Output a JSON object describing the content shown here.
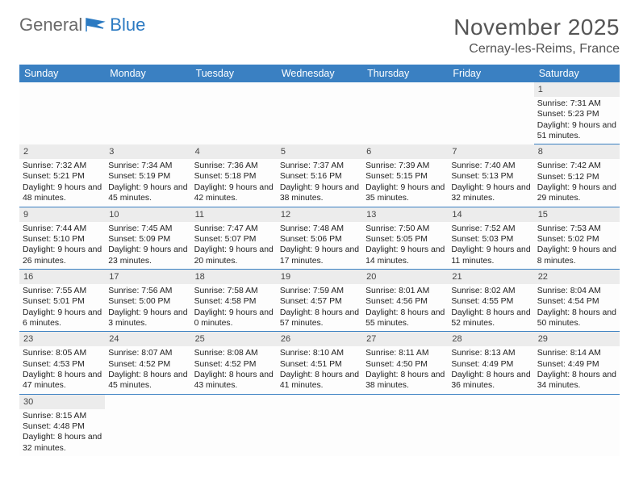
{
  "brand": {
    "part1": "General",
    "part2": "Blue"
  },
  "title": "November 2025",
  "location": "Cernay-les-Reims, France",
  "colors": {
    "header_bg": "#3a80c2",
    "header_fg": "#ffffff",
    "daynum_bg": "#ececec",
    "rule": "#3a80c2"
  },
  "day_headers": [
    "Sunday",
    "Monday",
    "Tuesday",
    "Wednesday",
    "Thursday",
    "Friday",
    "Saturday"
  ],
  "weeks": [
    [
      null,
      null,
      null,
      null,
      null,
      null,
      {
        "n": "1",
        "sunrise": "Sunrise: 7:31 AM",
        "sunset": "Sunset: 5:23 PM",
        "daylight": "Daylight: 9 hours and 51 minutes."
      }
    ],
    [
      {
        "n": "2",
        "sunrise": "Sunrise: 7:32 AM",
        "sunset": "Sunset: 5:21 PM",
        "daylight": "Daylight: 9 hours and 48 minutes."
      },
      {
        "n": "3",
        "sunrise": "Sunrise: 7:34 AM",
        "sunset": "Sunset: 5:19 PM",
        "daylight": "Daylight: 9 hours and 45 minutes."
      },
      {
        "n": "4",
        "sunrise": "Sunrise: 7:36 AM",
        "sunset": "Sunset: 5:18 PM",
        "daylight": "Daylight: 9 hours and 42 minutes."
      },
      {
        "n": "5",
        "sunrise": "Sunrise: 7:37 AM",
        "sunset": "Sunset: 5:16 PM",
        "daylight": "Daylight: 9 hours and 38 minutes."
      },
      {
        "n": "6",
        "sunrise": "Sunrise: 7:39 AM",
        "sunset": "Sunset: 5:15 PM",
        "daylight": "Daylight: 9 hours and 35 minutes."
      },
      {
        "n": "7",
        "sunrise": "Sunrise: 7:40 AM",
        "sunset": "Sunset: 5:13 PM",
        "daylight": "Daylight: 9 hours and 32 minutes."
      },
      {
        "n": "8",
        "sunrise": "Sunrise: 7:42 AM",
        "sunset": "Sunset: 5:12 PM",
        "daylight": "Daylight: 9 hours and 29 minutes."
      }
    ],
    [
      {
        "n": "9",
        "sunrise": "Sunrise: 7:44 AM",
        "sunset": "Sunset: 5:10 PM",
        "daylight": "Daylight: 9 hours and 26 minutes."
      },
      {
        "n": "10",
        "sunrise": "Sunrise: 7:45 AM",
        "sunset": "Sunset: 5:09 PM",
        "daylight": "Daylight: 9 hours and 23 minutes."
      },
      {
        "n": "11",
        "sunrise": "Sunrise: 7:47 AM",
        "sunset": "Sunset: 5:07 PM",
        "daylight": "Daylight: 9 hours and 20 minutes."
      },
      {
        "n": "12",
        "sunrise": "Sunrise: 7:48 AM",
        "sunset": "Sunset: 5:06 PM",
        "daylight": "Daylight: 9 hours and 17 minutes."
      },
      {
        "n": "13",
        "sunrise": "Sunrise: 7:50 AM",
        "sunset": "Sunset: 5:05 PM",
        "daylight": "Daylight: 9 hours and 14 minutes."
      },
      {
        "n": "14",
        "sunrise": "Sunrise: 7:52 AM",
        "sunset": "Sunset: 5:03 PM",
        "daylight": "Daylight: 9 hours and 11 minutes."
      },
      {
        "n": "15",
        "sunrise": "Sunrise: 7:53 AM",
        "sunset": "Sunset: 5:02 PM",
        "daylight": "Daylight: 9 hours and 8 minutes."
      }
    ],
    [
      {
        "n": "16",
        "sunrise": "Sunrise: 7:55 AM",
        "sunset": "Sunset: 5:01 PM",
        "daylight": "Daylight: 9 hours and 6 minutes."
      },
      {
        "n": "17",
        "sunrise": "Sunrise: 7:56 AM",
        "sunset": "Sunset: 5:00 PM",
        "daylight": "Daylight: 9 hours and 3 minutes."
      },
      {
        "n": "18",
        "sunrise": "Sunrise: 7:58 AM",
        "sunset": "Sunset: 4:58 PM",
        "daylight": "Daylight: 9 hours and 0 minutes."
      },
      {
        "n": "19",
        "sunrise": "Sunrise: 7:59 AM",
        "sunset": "Sunset: 4:57 PM",
        "daylight": "Daylight: 8 hours and 57 minutes."
      },
      {
        "n": "20",
        "sunrise": "Sunrise: 8:01 AM",
        "sunset": "Sunset: 4:56 PM",
        "daylight": "Daylight: 8 hours and 55 minutes."
      },
      {
        "n": "21",
        "sunrise": "Sunrise: 8:02 AM",
        "sunset": "Sunset: 4:55 PM",
        "daylight": "Daylight: 8 hours and 52 minutes."
      },
      {
        "n": "22",
        "sunrise": "Sunrise: 8:04 AM",
        "sunset": "Sunset: 4:54 PM",
        "daylight": "Daylight: 8 hours and 50 minutes."
      }
    ],
    [
      {
        "n": "23",
        "sunrise": "Sunrise: 8:05 AM",
        "sunset": "Sunset: 4:53 PM",
        "daylight": "Daylight: 8 hours and 47 minutes."
      },
      {
        "n": "24",
        "sunrise": "Sunrise: 8:07 AM",
        "sunset": "Sunset: 4:52 PM",
        "daylight": "Daylight: 8 hours and 45 minutes."
      },
      {
        "n": "25",
        "sunrise": "Sunrise: 8:08 AM",
        "sunset": "Sunset: 4:52 PM",
        "daylight": "Daylight: 8 hours and 43 minutes."
      },
      {
        "n": "26",
        "sunrise": "Sunrise: 8:10 AM",
        "sunset": "Sunset: 4:51 PM",
        "daylight": "Daylight: 8 hours and 41 minutes."
      },
      {
        "n": "27",
        "sunrise": "Sunrise: 8:11 AM",
        "sunset": "Sunset: 4:50 PM",
        "daylight": "Daylight: 8 hours and 38 minutes."
      },
      {
        "n": "28",
        "sunrise": "Sunrise: 8:13 AM",
        "sunset": "Sunset: 4:49 PM",
        "daylight": "Daylight: 8 hours and 36 minutes."
      },
      {
        "n": "29",
        "sunrise": "Sunrise: 8:14 AM",
        "sunset": "Sunset: 4:49 PM",
        "daylight": "Daylight: 8 hours and 34 minutes."
      }
    ],
    [
      {
        "n": "30",
        "sunrise": "Sunrise: 8:15 AM",
        "sunset": "Sunset: 4:48 PM",
        "daylight": "Daylight: 8 hours and 32 minutes."
      },
      null,
      null,
      null,
      null,
      null,
      null
    ]
  ]
}
